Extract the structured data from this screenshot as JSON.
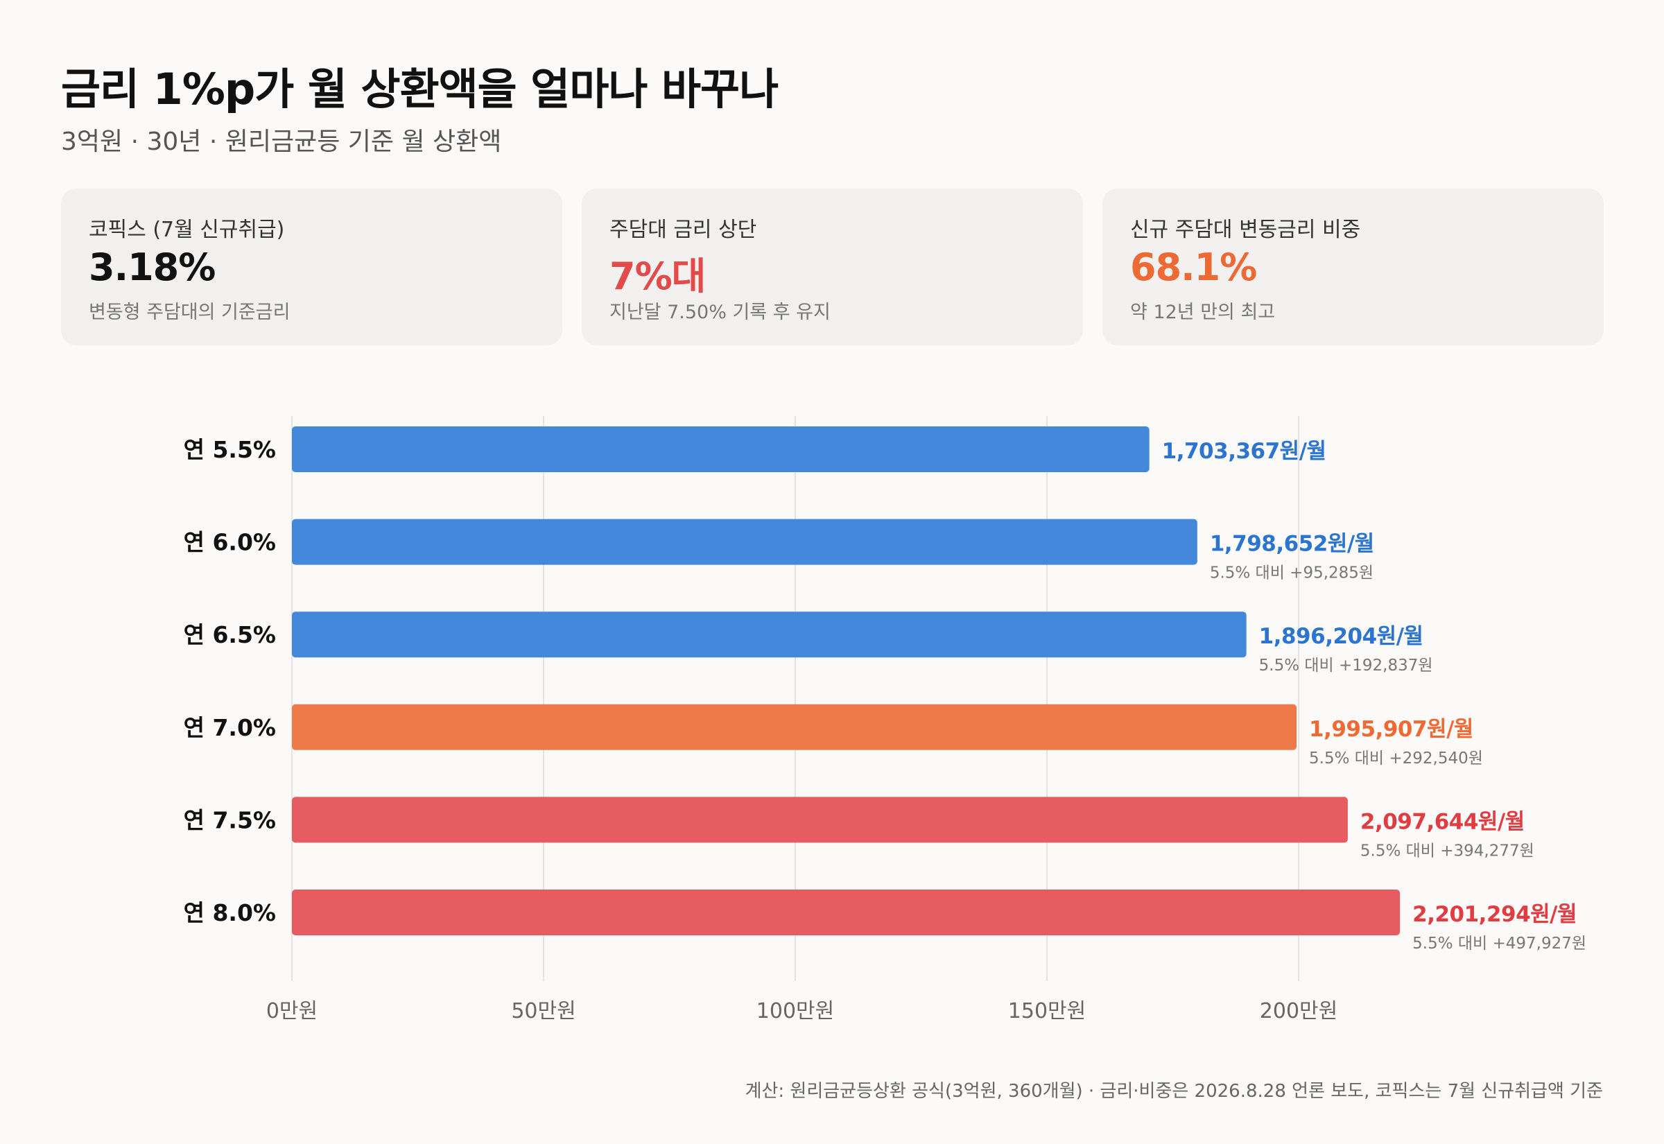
{
  "header": {
    "title": "금리 1%p가 월 상환액을 얼마나 바꾸나",
    "subtitle": "3억원 · 30년 · 원리금균등 기준 월 상환액"
  },
  "cards": [
    {
      "label": "코픽스 (7월 신규취급)",
      "value": "3.18%",
      "note": "변동형 주담대의 기준금리",
      "color": "#111111"
    },
    {
      "label": "주담대 금리 상단",
      "value": "7%대",
      "note": "지난달 7.50% 기록 후 유지",
      "color": "#e34a4a"
    },
    {
      "label": "신규 주담대 변동금리 비중",
      "value": "68.1%",
      "note": "약 12년 만의 최고",
      "color": "#ee6a35"
    }
  ],
  "chart_data": {
    "type": "bar",
    "orientation": "horizontal",
    "categories": [
      "연 5.5%",
      "연 6.0%",
      "연 6.5%",
      "연 7.0%",
      "연 7.5%",
      "연 8.0%"
    ],
    "values": [
      1703367,
      1798652,
      1896204,
      1995907,
      2097644,
      2201294
    ],
    "value_labels": [
      "1,703,367원/월",
      "1,798,652원/월",
      "1,896,204원/월",
      "1,995,907원/월",
      "2,097,644원/월",
      "2,201,294원/월"
    ],
    "diff_labels": [
      "",
      "5.5% 대비 +95,285원",
      "5.5% 대비 +192,837원",
      "5.5% 대비 +292,540원",
      "5.5% 대비 +394,277원",
      "5.5% 대비 +497,927원"
    ],
    "bar_colors": [
      "#4388db",
      "#4388db",
      "#4388db",
      "#ee7a4a",
      "#e65c61",
      "#e65c61"
    ],
    "label_colors": [
      "#2b74cf",
      "#2b74cf",
      "#2b74cf",
      "#ee6a35",
      "#e03c42",
      "#e03c42"
    ],
    "x_ticks": [
      0,
      500000,
      1000000,
      1500000,
      2000000
    ],
    "x_tick_labels": [
      "0만원",
      "50만원",
      "100만원",
      "150만원",
      "200만원"
    ],
    "xlim": [
      0,
      2200000
    ],
    "grid": true
  },
  "footnote": "계산: 원리금균등상환 공식(3억원, 360개월) · 금리·비중은 2026.8.28 언론 보도, 코픽스는 7월 신규취급액 기준"
}
